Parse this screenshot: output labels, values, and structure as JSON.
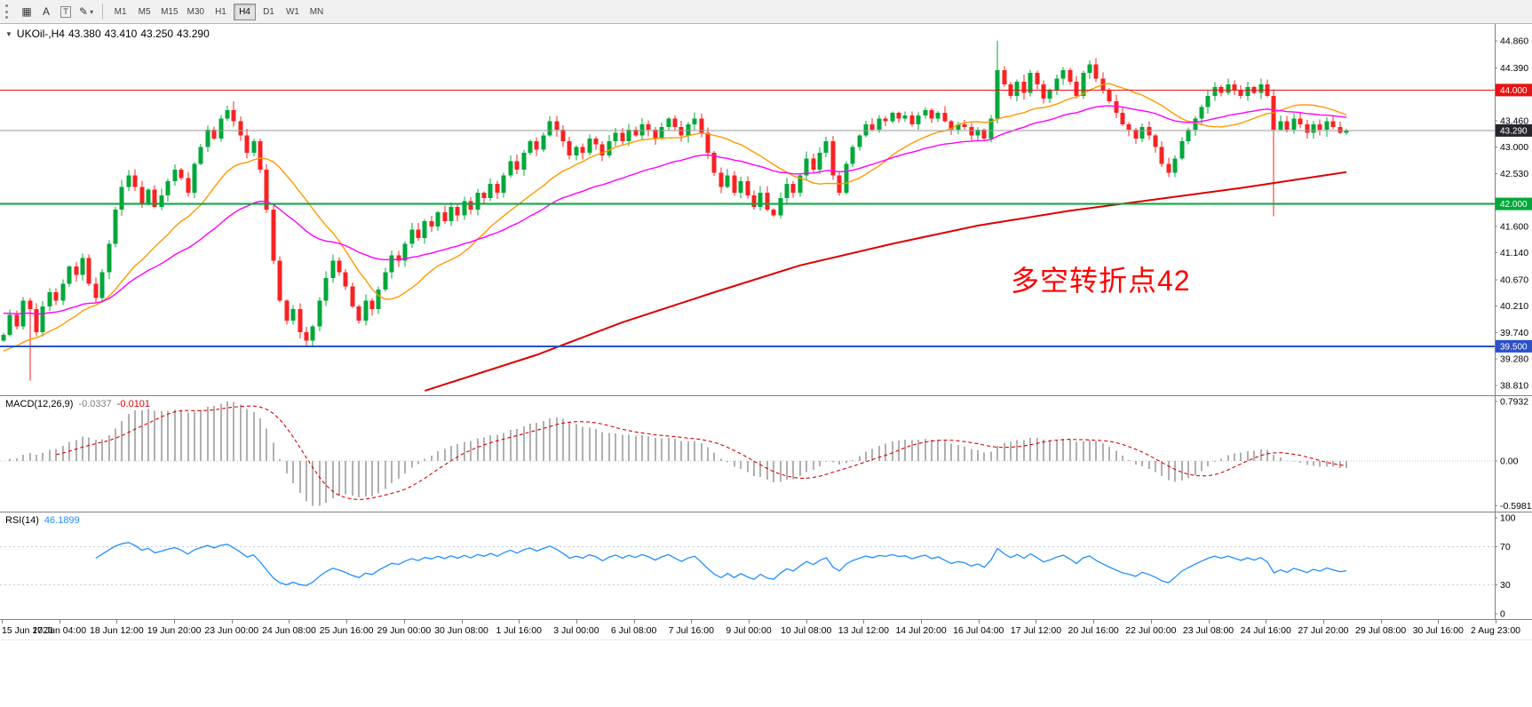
{
  "toolbar": {
    "icons": {
      "grid": "▦",
      "text_label": "A",
      "template_label": "T",
      "pencil": "✎",
      "caret": "▾"
    },
    "timeframes": [
      "M1",
      "M5",
      "M15",
      "M30",
      "H1",
      "H4",
      "D1",
      "W1",
      "MN"
    ],
    "active_timeframe": "H4"
  },
  "chart": {
    "icons": {
      "caret_down": "▼"
    },
    "symbol": "UKOil-,H4",
    "ohlc": {
      "open": "43.380",
      "high": "43.410",
      "low": "43.250",
      "close": "43.290"
    },
    "annotation": {
      "text": "多空转折点42",
      "color": "#ff0000"
    }
  },
  "macd": {
    "title": "MACD(12,26,9)",
    "value_main": "-0.0337",
    "value_signal": "-0.0101"
  },
  "rsi": {
    "title": "RSI(14)",
    "value": "46.1899"
  },
  "chart_data": [
    {
      "type": "candlestick",
      "symbol": "UKOil-",
      "timeframe": "H4",
      "ohlc_current": [
        43.38,
        43.41,
        43.25,
        43.29
      ],
      "first_open": 39.6,
      "closes": [
        39.7,
        40.05,
        39.85,
        40.3,
        40.15,
        39.75,
        40.2,
        40.45,
        40.3,
        40.6,
        40.9,
        40.75,
        41.05,
        40.6,
        40.35,
        40.8,
        41.3,
        41.9,
        42.3,
        42.5,
        42.3,
        42.0,
        42.25,
        41.95,
        42.15,
        42.4,
        42.6,
        42.45,
        42.2,
        42.7,
        43.0,
        43.3,
        43.15,
        43.5,
        43.65,
        43.45,
        43.2,
        42.9,
        43.1,
        42.6,
        41.9,
        41.0,
        40.3,
        39.95,
        40.15,
        39.75,
        39.6,
        39.85,
        40.3,
        40.7,
        41.0,
        40.8,
        40.55,
        40.2,
        39.95,
        40.3,
        40.15,
        40.5,
        40.8,
        41.1,
        41.0,
        41.3,
        41.55,
        41.4,
        41.7,
        41.6,
        41.85,
        41.7,
        41.95,
        41.8,
        42.05,
        41.9,
        42.2,
        42.1,
        42.35,
        42.2,
        42.5,
        42.75,
        42.6,
        42.9,
        43.1,
        42.95,
        43.2,
        43.45,
        43.3,
        43.1,
        42.85,
        43.0,
        42.9,
        43.15,
        43.05,
        42.85,
        43.1,
        43.25,
        43.1,
        43.3,
        43.2,
        43.4,
        43.3,
        43.15,
        43.35,
        43.5,
        43.35,
        43.2,
        43.4,
        43.5,
        43.25,
        42.9,
        42.55,
        42.3,
        42.5,
        42.2,
        42.4,
        42.15,
        41.95,
        42.2,
        41.9,
        41.8,
        42.1,
        42.35,
        42.2,
        42.5,
        42.8,
        42.6,
        42.9,
        43.1,
        42.5,
        42.2,
        42.7,
        43.0,
        43.2,
        43.4,
        43.3,
        43.5,
        43.45,
        43.6,
        43.5,
        43.55,
        43.4,
        43.55,
        43.65,
        43.5,
        43.6,
        43.45,
        43.3,
        43.4,
        43.35,
        43.2,
        43.3,
        43.15,
        43.5,
        44.35,
        44.1,
        43.9,
        44.15,
        43.95,
        44.3,
        44.1,
        43.85,
        44.0,
        44.2,
        44.35,
        44.15,
        43.9,
        44.3,
        44.45,
        44.2,
        44.0,
        43.8,
        43.6,
        43.4,
        43.3,
        43.15,
        43.35,
        43.2,
        43.0,
        42.7,
        42.55,
        42.8,
        43.1,
        43.3,
        43.5,
        43.7,
        43.9,
        44.05,
        43.95,
        44.1,
        44.0,
        43.9,
        44.05,
        43.95,
        44.1,
        43.9,
        43.3,
        43.45,
        43.3,
        43.5,
        43.4,
        43.25,
        43.4,
        43.3,
        43.45,
        43.35,
        43.25,
        43.29
      ],
      "special_wicks": {
        "4": {
          "low": 38.9
        },
        "35": {
          "high": 43.8
        },
        "46": {
          "low": 39.5
        },
        "151": {
          "high": 44.86
        },
        "165": {
          "high": 44.52
        },
        "193": {
          "low": 41.78
        }
      },
      "up_color": "#00a83a",
      "down_color": "#f82222",
      "ylim": [
        38.64,
        45.16
      ],
      "y_ticks": [
        "44.860",
        "44.390",
        "43.460",
        "43.000",
        "42.530",
        "41.600",
        "41.140",
        "40.670",
        "40.210",
        "39.740",
        "39.280",
        "38.810"
      ],
      "hlines": [
        {
          "value": 44.0,
          "color": "#e81212",
          "width": 1
        },
        {
          "value": 42.0,
          "color": "#00a83a",
          "width": 2
        },
        {
          "value": 39.5,
          "color": "#2b50c8",
          "width": 2
        }
      ],
      "bid_line": {
        "value": 43.29,
        "color": "#9a9a9a"
      },
      "badges": [
        {
          "label": "44.000",
          "value": 44.0,
          "color": "#e81212"
        },
        {
          "label": "43.290",
          "value": 43.29,
          "color": "#26262e"
        },
        {
          "label": "42.000",
          "value": 42.0,
          "color": "#00a83a"
        },
        {
          "label": "39.500",
          "value": 39.5,
          "color": "#2b50c8"
        }
      ],
      "ma_fast": {
        "period": 18,
        "color": "#ff9900"
      },
      "ma_mid": {
        "alpha": 0.05,
        "seed": 40.1,
        "color": "#ff00ff"
      },
      "ma_slow": {
        "color": "#dd0000",
        "anchors": [
          [
            64,
            38.72
          ],
          [
            81,
            39.35
          ],
          [
            94,
            39.92
          ],
          [
            108,
            40.45
          ],
          [
            121,
            40.92
          ],
          [
            135,
            41.3
          ],
          [
            148,
            41.62
          ],
          [
            162,
            41.88
          ],
          [
            175,
            42.08
          ],
          [
            188,
            42.28
          ],
          [
            204,
            42.56
          ]
        ]
      },
      "x_labels": [
        "15 Jun 2020",
        "17 Jun 04:00",
        "18 Jun 12:00",
        "19 Jun 20:00",
        "23 Jun 00:00",
        "24 Jun 08:00",
        "25 Jun 16:00",
        "29 Jun 00:00",
        "30 Jun 08:00",
        "1 Jul 16:00",
        "3 Jul 00:00",
        "6 Jul 08:00",
        "7 Jul 16:00",
        "9 Jul 00:00",
        "10 Jul 08:00",
        "13 Jul 12:00",
        "14 Jul 20:00",
        "16 Jul 04:00",
        "17 Jul 12:00",
        "20 Jul 16:00",
        "22 Jul 00:00",
        "23 Jul 08:00",
        "24 Jul 16:00",
        "27 Jul 20:00",
        "29 Jul 08:00",
        "30 Jul 16:00",
        "2 Aug 23:00"
      ]
    },
    {
      "type": "macd",
      "fast": 12,
      "slow": 26,
      "signal": 9,
      "current": [
        -0.0337,
        -0.0101
      ],
      "y_ticks": [
        {
          "label": "0.7932",
          "value": 0.7932
        },
        {
          "label": "0.00",
          "value": 0.0
        },
        {
          "label": "-0.5981",
          "value": -0.5981
        }
      ],
      "hist_color": "#b0b0b0",
      "signal_color": "#dd0000"
    },
    {
      "type": "rsi",
      "period": 14,
      "current": 46.1899,
      "ylim": [
        0,
        100
      ],
      "levels": [
        70,
        30
      ],
      "y_ticks": [
        {
          "label": "100",
          "value": 100
        },
        {
          "label": "70",
          "value": 70
        },
        {
          "label": "30",
          "value": 30
        },
        {
          "label": "0",
          "value": 0
        }
      ],
      "line_color": "#1f8fff"
    }
  ]
}
